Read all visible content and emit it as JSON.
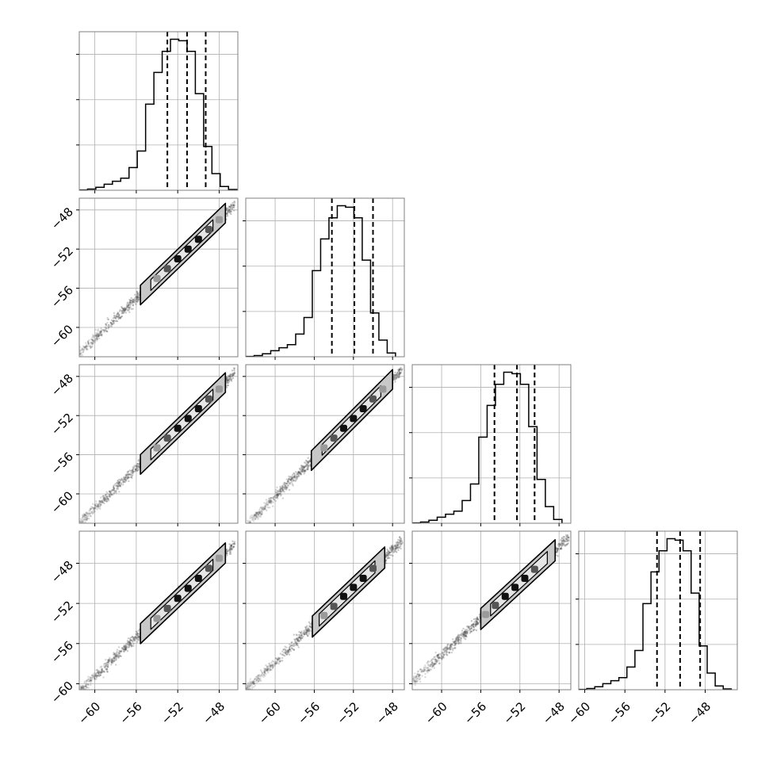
{
  "figure": {
    "type": "corner_plot",
    "n_params": 4,
    "quantiles": [
      0.16,
      0.5,
      0.84
    ],
    "colors": {
      "frame": "#7f7f7f",
      "grid": "#b0b0b0",
      "histogram": "#000000",
      "quantile_line": "#000000",
      "contour": "#000000",
      "points": "#555555",
      "region_fill": "#c8c8c8"
    }
  },
  "chart_data": [
    {
      "type": "histogram",
      "panel": "0-0",
      "param": 0,
      "x": {
        "range": [
          -61.5,
          -46.2
        ],
        "ticks": [
          -60,
          -56,
          -52,
          -48
        ],
        "show_ticklabels": false
      },
      "y": {
        "range": [
          0,
          1.05
        ],
        "ticks": [
          0.3,
          0.6,
          0.9
        ],
        "show_ticklabels": false
      },
      "bins": [
        -61.5,
        -60.7,
        -59.9,
        -59.1,
        -58.3,
        -57.5,
        -56.7,
        -55.9,
        -55.1,
        -54.3,
        -53.5,
        -52.7,
        -51.9,
        -51.1,
        -50.3,
        -49.5,
        -48.7,
        -47.9,
        -47.1,
        -46.3
      ],
      "counts": [
        0.002,
        0.008,
        0.02,
        0.04,
        0.06,
        0.08,
        0.15,
        0.26,
        0.57,
        0.78,
        0.92,
        1.0,
        0.99,
        0.92,
        0.64,
        0.29,
        0.11,
        0.025,
        0.005
      ],
      "quantile_values": [
        -53.0,
        -51.1,
        -49.3
      ],
      "grid": true
    },
    {
      "type": "histogram",
      "panel": "1-1",
      "param": 1,
      "x": {
        "range": [
          -63.0,
          -46.8
        ],
        "ticks": [
          -60,
          -56,
          -52,
          -48
        ],
        "show_ticklabels": false
      },
      "y": {
        "range": [
          0,
          1.05
        ],
        "ticks": [
          0.3,
          0.6,
          0.9
        ],
        "show_ticklabels": false
      },
      "bins": [
        -63.0,
        -62.15,
        -61.3,
        -60.45,
        -59.6,
        -58.75,
        -57.9,
        -57.05,
        -56.2,
        -55.35,
        -54.5,
        -53.65,
        -52.8,
        -51.95,
        -51.1,
        -50.25,
        -49.4,
        -48.55,
        -47.7
      ],
      "counts": [
        0.002,
        0.008,
        0.02,
        0.04,
        0.06,
        0.08,
        0.15,
        0.26,
        0.57,
        0.78,
        0.92,
        1.0,
        0.99,
        0.92,
        0.64,
        0.29,
        0.11,
        0.025
      ],
      "quantile_values": [
        -54.2,
        -51.9,
        -50.0
      ],
      "grid": true
    },
    {
      "type": "histogram",
      "panel": "2-2",
      "param": 2,
      "x": {
        "range": [
          -63.0,
          -46.8
        ],
        "ticks": [
          -60,
          -56,
          -52,
          -48
        ],
        "show_ticklabels": false
      },
      "y": {
        "range": [
          0,
          1.05
        ],
        "ticks": [
          0.3,
          0.6,
          0.9
        ],
        "show_ticklabels": false
      },
      "bins": [
        -63.0,
        -62.15,
        -61.3,
        -60.45,
        -59.6,
        -58.75,
        -57.9,
        -57.05,
        -56.2,
        -55.35,
        -54.5,
        -53.65,
        -52.8,
        -51.95,
        -51.1,
        -50.25,
        -49.4,
        -48.55,
        -47.7
      ],
      "counts": [
        0.002,
        0.008,
        0.02,
        0.04,
        0.06,
        0.08,
        0.15,
        0.26,
        0.57,
        0.78,
        0.92,
        1.0,
        0.99,
        0.92,
        0.64,
        0.29,
        0.11,
        0.025
      ],
      "quantile_values": [
        -54.6,
        -52.3,
        -50.5
      ],
      "grid": true
    },
    {
      "type": "histogram",
      "panel": "3-3",
      "param": 3,
      "x": {
        "range": [
          -60.6,
          -44.8
        ],
        "ticks": [
          -60,
          -56,
          -52,
          -48
        ],
        "tick_labels": [
          "−60",
          "−56",
          "−52",
          "−48"
        ],
        "show_ticklabels": true
      },
      "y": {
        "range": [
          0,
          1.05
        ],
        "ticks": [
          0.3,
          0.6,
          0.9
        ],
        "show_ticklabels": false
      },
      "bins": [
        -60.6,
        -59.8,
        -59.0,
        -58.2,
        -57.4,
        -56.6,
        -55.8,
        -55.0,
        -54.2,
        -53.4,
        -52.6,
        -51.8,
        -51.0,
        -50.2,
        -49.4,
        -48.6,
        -47.8,
        -47.0,
        -46.2,
        -45.4
      ],
      "counts": [
        0.002,
        0.008,
        0.02,
        0.04,
        0.06,
        0.08,
        0.15,
        0.26,
        0.57,
        0.78,
        0.92,
        1.0,
        0.99,
        0.92,
        0.64,
        0.29,
        0.11,
        0.025,
        0.005
      ],
      "quantile_values": [
        -52.8,
        -50.5,
        -48.5
      ],
      "grid": true
    },
    {
      "type": "scatter_contour",
      "panel": "1-0",
      "x_param": 0,
      "y_param": 1,
      "x": {
        "range": [
          -61.5,
          -46.2
        ],
        "ticks": [
          -60,
          -56,
          -52,
          -48
        ],
        "show_ticklabels": false
      },
      "y": {
        "range": [
          -63.0,
          -46.8
        ],
        "ticks": [
          -48,
          -52,
          -56,
          -60
        ],
        "tick_labels": [
          "−48",
          "−52",
          "−56",
          "−60"
        ],
        "show_ticklabels": true
      },
      "line": {
        "x_from": -61.5,
        "x_to": -46.5,
        "slope": 1.02,
        "x0": -51.0,
        "y0": -52.0
      },
      "inner_region": {
        "x_from": -54.6,
        "x_to": -48.6,
        "half_width": 0.55
      },
      "outer_region": {
        "x_from": -55.6,
        "x_to": -47.4,
        "half_width": 1.0
      },
      "density_blobs": [
        {
          "x": -52.0,
          "y": -53.0,
          "level": 3
        },
        {
          "x": -51.0,
          "y": -52.0,
          "level": 3
        },
        {
          "x": -50.0,
          "y": -51.0,
          "level": 3
        },
        {
          "x": -53.0,
          "y": -54.0,
          "level": 2
        },
        {
          "x": -49.0,
          "y": -50.0,
          "level": 2
        },
        {
          "x": -54.0,
          "y": -55.0,
          "level": 1
        },
        {
          "x": -48.0,
          "y": -49.0,
          "level": 1
        }
      ],
      "grid": true
    },
    {
      "type": "scatter_contour",
      "panel": "2-0",
      "x_param": 0,
      "y_param": 2,
      "x": {
        "range": [
          -61.5,
          -46.2
        ],
        "ticks": [
          -60,
          -56,
          -52,
          -48
        ],
        "show_ticklabels": false
      },
      "y": {
        "range": [
          -63.0,
          -46.8
        ],
        "ticks": [
          -48,
          -52,
          -56,
          -60
        ],
        "tick_labels": [
          "−48",
          "−52",
          "−56",
          "−60"
        ],
        "show_ticklabels": true
      },
      "line": {
        "x_from": -61.5,
        "x_to": -46.5,
        "slope": 1.02,
        "x0": -51.0,
        "y0": -52.3
      },
      "inner_region": {
        "x_from": -54.6,
        "x_to": -48.6,
        "half_width": 0.55
      },
      "outer_region": {
        "x_from": -55.6,
        "x_to": -47.4,
        "half_width": 1.0
      },
      "density_blobs": [
        {
          "x": -52.0,
          "y": -53.3,
          "level": 3
        },
        {
          "x": -51.0,
          "y": -52.3,
          "level": 3
        },
        {
          "x": -50.0,
          "y": -51.3,
          "level": 3
        },
        {
          "x": -53.0,
          "y": -54.3,
          "level": 2
        },
        {
          "x": -49.0,
          "y": -50.3,
          "level": 2
        },
        {
          "x": -54.0,
          "y": -55.3,
          "level": 1
        },
        {
          "x": -48.0,
          "y": -49.3,
          "level": 1
        }
      ],
      "grid": true
    },
    {
      "type": "scatter_contour",
      "panel": "2-1",
      "x_param": 1,
      "y_param": 2,
      "x": {
        "range": [
          -63.0,
          -46.8
        ],
        "ticks": [
          -60,
          -56,
          -52,
          -48
        ],
        "show_ticklabels": false
      },
      "y": {
        "range": [
          -63.0,
          -46.8
        ],
        "ticks": [
          -48,
          -52,
          -56,
          -60
        ],
        "show_ticklabels": false
      },
      "line": {
        "x_from": -63.0,
        "x_to": -47.0,
        "slope": 1.0,
        "x0": -52.0,
        "y0": -52.3
      },
      "inner_region": {
        "x_from": -55.2,
        "x_to": -49.2,
        "half_width": 0.55
      },
      "outer_region": {
        "x_from": -56.3,
        "x_to": -48.0,
        "half_width": 1.0
      },
      "density_blobs": [
        {
          "x": -53.0,
          "y": -53.3,
          "level": 3
        },
        {
          "x": -52.0,
          "y": -52.3,
          "level": 3
        },
        {
          "x": -51.0,
          "y": -51.3,
          "level": 3
        },
        {
          "x": -54.0,
          "y": -54.3,
          "level": 2
        },
        {
          "x": -50.0,
          "y": -50.3,
          "level": 2
        },
        {
          "x": -55.0,
          "y": -55.3,
          "level": 1
        },
        {
          "x": -49.0,
          "y": -49.3,
          "level": 1
        }
      ],
      "grid": true
    },
    {
      "type": "scatter_contour",
      "panel": "3-0",
      "x_param": 0,
      "y_param": 3,
      "x": {
        "range": [
          -61.5,
          -46.2
        ],
        "ticks": [
          -60,
          -56,
          -52,
          -48
        ],
        "tick_labels": [
          "−60",
          "−56",
          "−52",
          "−48"
        ],
        "show_ticklabels": true
      },
      "y": {
        "range": [
          -60.6,
          -44.8
        ],
        "ticks": [
          -48,
          -52,
          -56,
          -60
        ],
        "tick_labels": [
          "−48",
          "−52",
          "−56",
          "−60"
        ],
        "show_ticklabels": true
      },
      "line": {
        "x_from": -61.5,
        "x_to": -46.5,
        "slope": 0.98,
        "x0": -51.0,
        "y0": -50.5
      },
      "inner_region": {
        "x_from": -54.6,
        "x_to": -48.6,
        "half_width": 0.55
      },
      "outer_region": {
        "x_from": -55.6,
        "x_to": -47.4,
        "half_width": 1.0
      },
      "density_blobs": [
        {
          "x": -52.0,
          "y": -51.5,
          "level": 3
        },
        {
          "x": -51.0,
          "y": -50.5,
          "level": 3
        },
        {
          "x": -50.0,
          "y": -49.5,
          "level": 3
        },
        {
          "x": -53.0,
          "y": -52.5,
          "level": 2
        },
        {
          "x": -49.0,
          "y": -48.5,
          "level": 2
        },
        {
          "x": -54.0,
          "y": -53.5,
          "level": 1
        },
        {
          "x": -48.0,
          "y": -47.5,
          "level": 1
        }
      ],
      "grid": true
    },
    {
      "type": "scatter_contour",
      "panel": "3-1",
      "x_param": 1,
      "y_param": 3,
      "x": {
        "range": [
          -63.0,
          -46.8
        ],
        "ticks": [
          -60,
          -56,
          -52,
          -48
        ],
        "tick_labels": [
          "−60",
          "−56",
          "−52",
          "−48"
        ],
        "show_ticklabels": true
      },
      "y": {
        "range": [
          -60.6,
          -44.8
        ],
        "ticks": [
          -48,
          -52,
          -56,
          -60
        ],
        "show_ticklabels": false
      },
      "line": {
        "x_from": -63.0,
        "x_to": -47.0,
        "slope": 0.93,
        "x0": -52.0,
        "y0": -50.4
      },
      "inner_region": {
        "x_from": -55.5,
        "x_to": -49.8,
        "half_width": 0.6
      },
      "outer_region": {
        "x_from": -56.2,
        "x_to": -48.8,
        "half_width": 1.05
      },
      "density_blobs": [
        {
          "x": -53.0,
          "y": -51.3,
          "level": 3
        },
        {
          "x": -52.0,
          "y": -50.4,
          "level": 3
        },
        {
          "x": -51.0,
          "y": -49.5,
          "level": 3
        },
        {
          "x": -54.0,
          "y": -52.3,
          "level": 2
        },
        {
          "x": -50.0,
          "y": -48.5,
          "level": 2
        },
        {
          "x": -55.0,
          "y": -53.2,
          "level": 1
        }
      ],
      "grid": true
    },
    {
      "type": "scatter_contour",
      "panel": "3-2",
      "x_param": 2,
      "y_param": 3,
      "x": {
        "range": [
          -63.0,
          -46.8
        ],
        "ticks": [
          -60,
          -56,
          -52,
          -48
        ],
        "tick_labels": [
          "−60",
          "−56",
          "−52",
          "−48"
        ],
        "show_ticklabels": true
      },
      "y": {
        "range": [
          -60.6,
          -44.8
        ],
        "ticks": [
          -48,
          -52,
          -56,
          -60
        ],
        "show_ticklabels": false
      },
      "line": {
        "x_from": -63.0,
        "x_to": -47.0,
        "slope": 0.9,
        "x0": -52.5,
        "y0": -50.4
      },
      "inner_region": {
        "x_from": -55.0,
        "x_to": -49.2,
        "half_width": 0.6
      },
      "outer_region": {
        "x_from": -56.0,
        "x_to": -48.4,
        "half_width": 1.05
      },
      "density_blobs": [
        {
          "x": -53.5,
          "y": -51.3,
          "level": 3
        },
        {
          "x": -52.5,
          "y": -50.4,
          "level": 3
        },
        {
          "x": -51.5,
          "y": -49.5,
          "level": 3
        },
        {
          "x": -54.5,
          "y": -52.2,
          "level": 2
        },
        {
          "x": -50.5,
          "y": -48.6,
          "level": 2
        },
        {
          "x": -55.5,
          "y": -53.1,
          "level": 1
        }
      ],
      "grid": true
    }
  ]
}
